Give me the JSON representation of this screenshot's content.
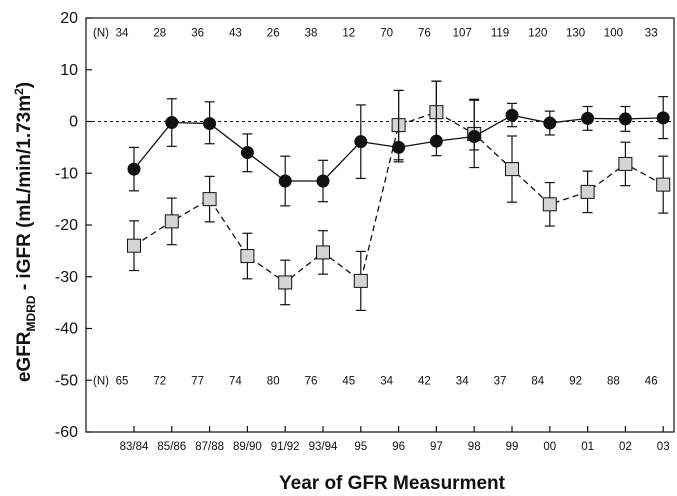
{
  "chart_data": {
    "type": "line",
    "xlabel": "Year of GFR Measurment",
    "ylabel_main": "eGFR",
    "ylabel_sub": "MDRD",
    "ylabel_rest": " - iGFR (mL/min/1.73m",
    "ylabel_sup": "2",
    "ylabel_end": ")",
    "ylim": [
      -60,
      20
    ],
    "yticks": [
      "20",
      "10",
      "0",
      "-10",
      "-20",
      "-30",
      "-40",
      "-50",
      "-60"
    ],
    "categories": [
      "83/84",
      "85/86",
      "87/88",
      "89/90",
      "91/92",
      "93/94",
      "95",
      "96",
      "97",
      "98",
      "99",
      "00",
      "01",
      "02",
      "03"
    ],
    "reference_line": 0,
    "n_label": "(N)",
    "top_counts": [
      "34",
      "28",
      "36",
      "43",
      "26",
      "38",
      "12",
      "70",
      "76",
      "107",
      "119",
      "120",
      "130",
      "100",
      "33"
    ],
    "bottom_counts": [
      "65",
      "72",
      "77",
      "74",
      "80",
      "76",
      "45",
      "34",
      "42",
      "34",
      "37",
      "84",
      "92",
      "88",
      "46"
    ],
    "series": [
      {
        "marker": "circle",
        "line_style": "solid",
        "color": "#111111",
        "values": [
          -9.2,
          -0.2,
          -0.4,
          -6.0,
          -11.5,
          -11.5,
          -3.9,
          -5.0,
          -3.8,
          -2.9,
          1.2,
          -0.3,
          0.6,
          0.5,
          0.7
        ],
        "err_low": [
          -13.4,
          -4.8,
          -4.3,
          -9.7,
          -16.3,
          -15.5,
          -11.0,
          -7.8,
          -6.6,
          -5.5,
          -1.0,
          -2.6,
          -1.7,
          -1.9,
          -3.3
        ],
        "err_high": [
          -5.0,
          4.4,
          3.8,
          -2.4,
          -6.7,
          -7.5,
          3.2,
          6.0,
          7.8,
          4.3,
          3.5,
          2.0,
          2.9,
          2.9,
          4.8
        ]
      },
      {
        "marker": "square",
        "line_style": "dashed",
        "color": "#d4d4d4",
        "values": [
          -24.0,
          -19.3,
          -15.0,
          -26.0,
          -31.1,
          -25.3,
          -30.8,
          -0.7,
          1.8,
          -2.4,
          -9.2,
          -16.0,
          -13.6,
          -8.2,
          -12.2
        ],
        "err_low": [
          -28.8,
          -23.8,
          -19.4,
          -30.4,
          -35.4,
          -29.5,
          -36.5,
          -7.4,
          -4.2,
          -8.9,
          -15.6,
          -20.2,
          -17.6,
          -12.4,
          -17.7
        ],
        "err_high": [
          -19.2,
          -14.8,
          -10.6,
          -21.6,
          -26.8,
          -21.1,
          -25.1,
          6.0,
          7.8,
          4.1,
          -2.8,
          -11.8,
          -9.6,
          -4.0,
          -6.7
        ]
      }
    ]
  }
}
